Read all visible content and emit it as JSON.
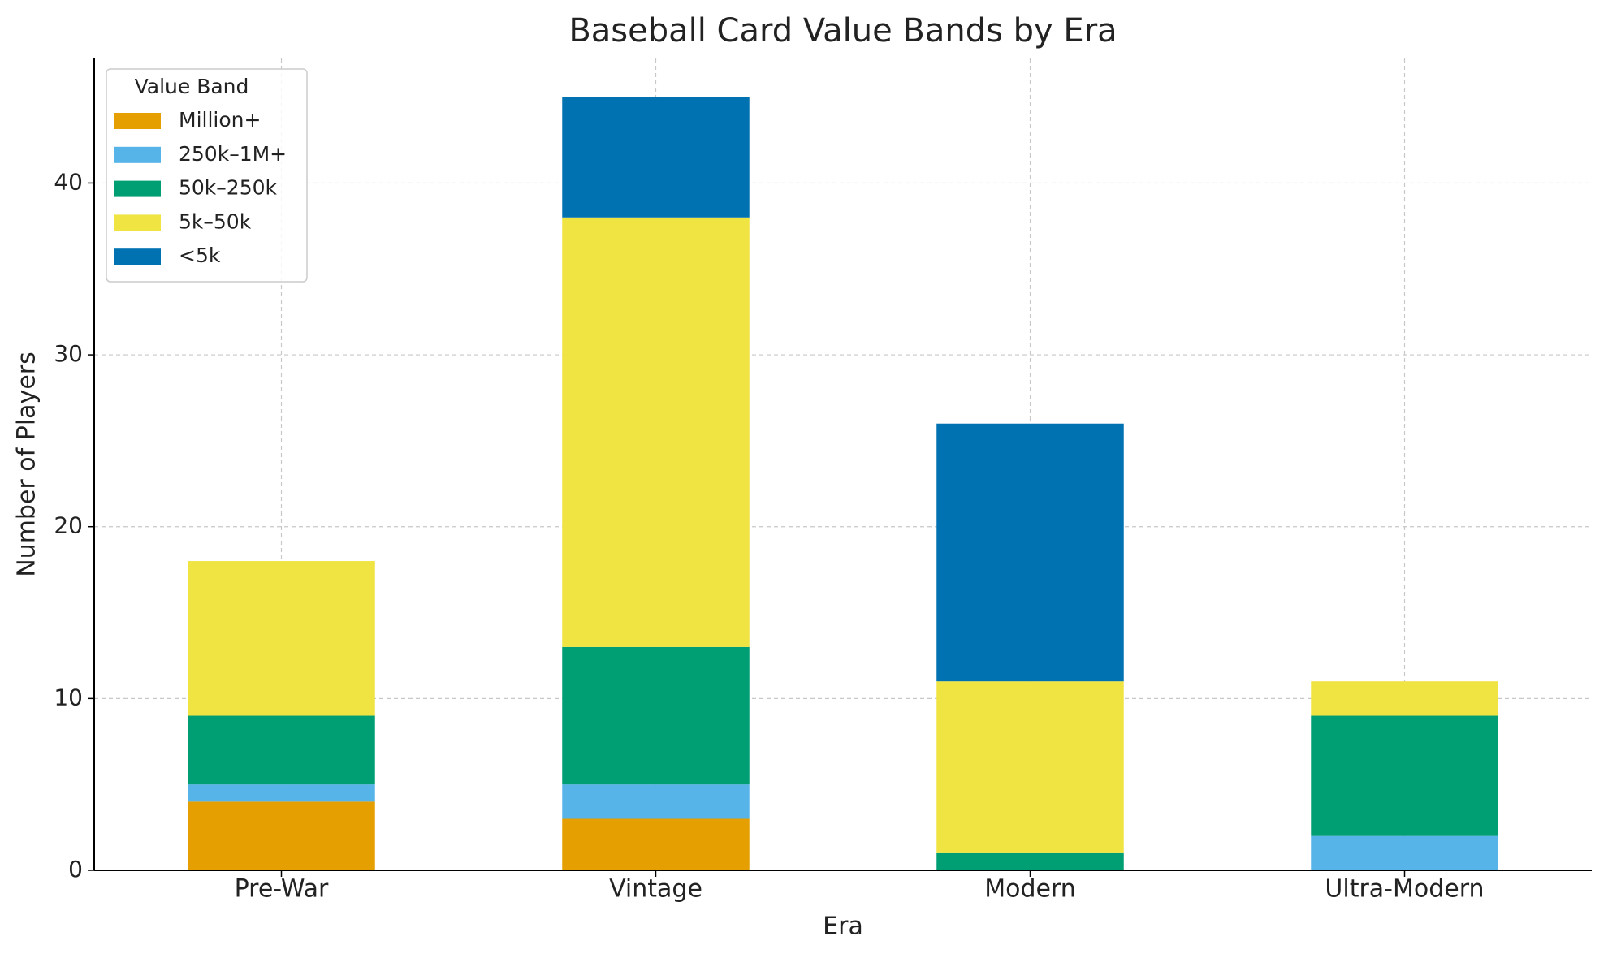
{
  "chart_data": {
    "type": "stacked_bar",
    "title": "Baseball Card Value Bands by Era",
    "x_label": "Era",
    "y_label": "Number of Players",
    "legend_title": "Value Band",
    "legend_position": "upper-left",
    "categories": [
      "Pre-War",
      "Vintage",
      "Modern",
      "Ultra-Modern"
    ],
    "series": [
      {
        "name": "Million+",
        "color": "#E69F00",
        "values": [
          4,
          3,
          0,
          0
        ]
      },
      {
        "name": "250k–1M+",
        "color": "#56B4E9",
        "values": [
          1,
          2,
          0,
          2
        ]
      },
      {
        "name": "50k–250k",
        "color": "#009E73",
        "values": [
          4,
          8,
          1,
          7
        ]
      },
      {
        "name": "5k–50k",
        "color": "#F0E442",
        "values": [
          9,
          25,
          10,
          2
        ]
      },
      {
        "name": "<5k",
        "color": "#0072B2",
        "values": [
          0,
          7,
          15,
          0
        ]
      }
    ],
    "ylim": [
      0,
      47.25
    ],
    "yticks": [
      0,
      10,
      20,
      30,
      40
    ],
    "grid": true
  }
}
